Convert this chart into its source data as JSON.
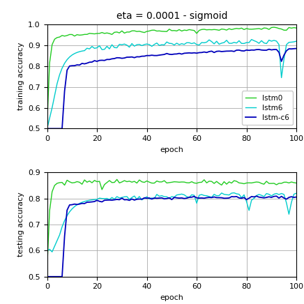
{
  "title": "eta = 0.0001 - sigmoid",
  "title_fontsize": 10,
  "colors": {
    "lstm0": "#22cc22",
    "lstm6": "#00cccc",
    "lstm_c6": "#0000bb"
  },
  "legend_labels": [
    "lstm0",
    "lstm6",
    "lstm-c6"
  ],
  "train_ylim": [
    0.5,
    1.0
  ],
  "test_ylim": [
    0.5,
    0.9
  ],
  "xlim": [
    0,
    100
  ],
  "xticks": [
    0,
    20,
    40,
    60,
    80,
    100
  ],
  "train_yticks": [
    0.5,
    0.6,
    0.7,
    0.8,
    0.9,
    1.0
  ],
  "test_yticks": [
    0.5,
    0.6,
    0.7,
    0.8,
    0.9
  ],
  "xlabel": "epoch",
  "train_ylabel": "training accuracy",
  "test_ylabel": "testing accuracy"
}
